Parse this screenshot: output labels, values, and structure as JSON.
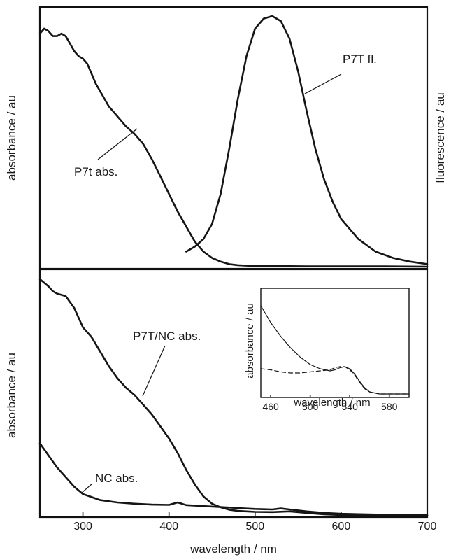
{
  "chart_data": [
    {
      "type": "line",
      "panel": "top",
      "xlim": [
        250,
        700
      ],
      "y_left_label": "absorbance / au",
      "y_right_label": "fluorescence / au",
      "y_ticks": "none",
      "series": [
        {
          "name": "P7t abs.",
          "x": [
            250,
            255,
            260,
            265,
            270,
            275,
            280,
            285,
            290,
            295,
            300,
            305,
            310,
            315,
            320,
            330,
            340,
            350,
            360,
            370,
            380,
            390,
            400,
            410,
            420,
            430,
            440,
            450,
            460,
            470,
            480,
            490,
            500,
            520,
            540,
            560,
            600,
            650,
            700
          ],
          "y": [
            0.93,
            0.95,
            0.94,
            0.92,
            0.92,
            0.93,
            0.92,
            0.89,
            0.86,
            0.84,
            0.83,
            0.81,
            0.77,
            0.73,
            0.7,
            0.64,
            0.6,
            0.56,
            0.53,
            0.49,
            0.43,
            0.36,
            0.29,
            0.22,
            0.16,
            0.1,
            0.06,
            0.035,
            0.02,
            0.01,
            0.006,
            0.004,
            0.003,
            0.002,
            0.002,
            0.001,
            0.001,
            0.001,
            0.0
          ]
        },
        {
          "name": "P7T fl.",
          "x": [
            420,
            430,
            440,
            450,
            460,
            470,
            480,
            490,
            500,
            510,
            520,
            530,
            540,
            550,
            560,
            570,
            580,
            590,
            600,
            620,
            640,
            660,
            680,
            700
          ],
          "y": [
            0.06,
            0.08,
            0.11,
            0.17,
            0.29,
            0.47,
            0.67,
            0.84,
            0.95,
            0.99,
            1.0,
            0.98,
            0.91,
            0.78,
            0.62,
            0.47,
            0.35,
            0.26,
            0.19,
            0.11,
            0.06,
            0.035,
            0.02,
            0.01
          ]
        }
      ],
      "annotations": [
        "P7t abs.",
        "P7T fl."
      ]
    },
    {
      "type": "line",
      "panel": "bottom",
      "xlabel": "wavelength / nm",
      "ylabel": "absorbance / au",
      "xlim": [
        250,
        700
      ],
      "x_ticks": [
        300,
        400,
        500,
        600,
        700
      ],
      "y_ticks": "none",
      "series": [
        {
          "name": "P7T/NC abs.",
          "x": [
            250,
            260,
            265,
            270,
            280,
            290,
            300,
            310,
            320,
            330,
            340,
            350,
            360,
            370,
            380,
            390,
            400,
            410,
            420,
            430,
            440,
            450,
            460,
            470,
            480,
            490,
            500,
            520,
            540,
            560,
            580,
            600,
            650,
            700
          ],
          "y": [
            0.98,
            0.95,
            0.93,
            0.92,
            0.91,
            0.86,
            0.78,
            0.74,
            0.68,
            0.62,
            0.57,
            0.53,
            0.5,
            0.46,
            0.42,
            0.37,
            0.32,
            0.26,
            0.19,
            0.13,
            0.08,
            0.05,
            0.035,
            0.025,
            0.02,
            0.018,
            0.016,
            0.015,
            0.018,
            0.012,
            0.006,
            0.003,
            0.002,
            0.001
          ]
        },
        {
          "name": "NC abs.",
          "x": [
            250,
            260,
            270,
            280,
            290,
            300,
            320,
            340,
            360,
            380,
            400,
            405,
            410,
            415,
            420,
            440,
            460,
            480,
            500,
            520,
            530,
            540,
            560,
            580,
            600,
            650,
            700
          ],
          "y": [
            0.3,
            0.25,
            0.2,
            0.16,
            0.12,
            0.09,
            0.065,
            0.055,
            0.05,
            0.046,
            0.045,
            0.05,
            0.055,
            0.05,
            0.044,
            0.04,
            0.036,
            0.032,
            0.028,
            0.026,
            0.03,
            0.026,
            0.018,
            0.012,
            0.008,
            0.004,
            0.002
          ]
        }
      ],
      "annotations": [
        "P7T/NC abs.",
        "NC abs."
      ]
    },
    {
      "type": "line",
      "panel": "inset",
      "xlabel": "wavelength / nm",
      "ylabel": "absorbance / au",
      "xlim": [
        450,
        600
      ],
      "x_ticks": [
        460,
        500,
        540,
        580
      ],
      "series": [
        {
          "style": "solid",
          "x": [
            450,
            455,
            460,
            470,
            480,
            490,
            500,
            510,
            520,
            525,
            530,
            535,
            540,
            545,
            550,
            555,
            560,
            570,
            580,
            590,
            600
          ],
          "y": [
            0.86,
            0.78,
            0.7,
            0.57,
            0.46,
            0.37,
            0.3,
            0.26,
            0.24,
            0.25,
            0.27,
            0.28,
            0.26,
            0.21,
            0.14,
            0.08,
            0.04,
            0.02,
            0.02,
            0.02,
            0.02
          ]
        },
        {
          "style": "dashed",
          "x": [
            450,
            460,
            470,
            480,
            490,
            500,
            510,
            520,
            525,
            530,
            535,
            540,
            545,
            550,
            555,
            560,
            570,
            580,
            590,
            600
          ],
          "y": [
            0.26,
            0.25,
            0.23,
            0.22,
            0.22,
            0.23,
            0.24,
            0.25,
            0.27,
            0.28,
            0.28,
            0.25,
            0.2,
            0.13,
            0.07,
            0.04,
            0.02,
            0.02,
            0.02,
            0.02
          ]
        }
      ]
    }
  ]
}
